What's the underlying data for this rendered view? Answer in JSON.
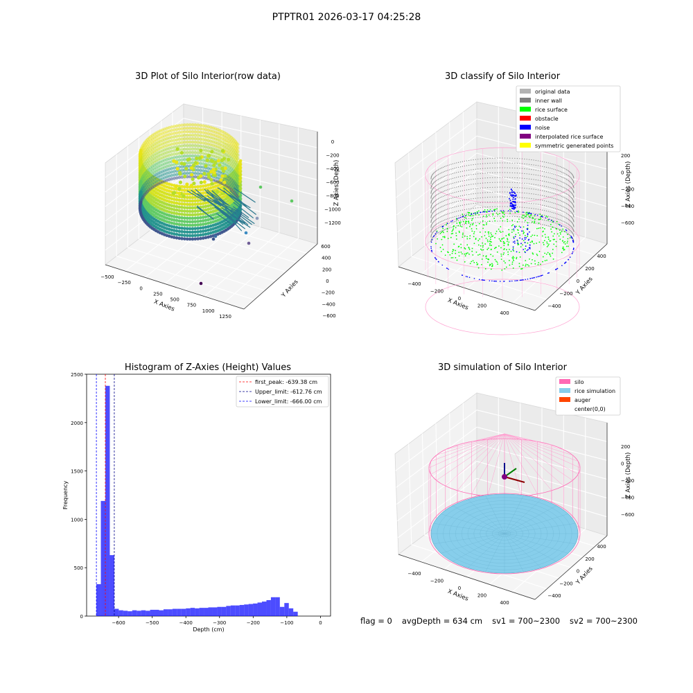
{
  "suptitle": "PTPTR01 2026-03-17 04:25:28",
  "panels": {
    "raw": {
      "title": "3D Plot of Silo Interior(row data)",
      "xlabel": "X Axies",
      "ylabel": "Y Axies",
      "zlabel": "Z Axies (Depth)",
      "xticks": [
        "−500",
        "−250",
        "0",
        "250",
        "500",
        "750",
        "1000",
        "1250"
      ],
      "yticks": [
        "−600",
        "−400",
        "−200",
        "0",
        "200",
        "400",
        "600"
      ],
      "zticks": [
        "−1200",
        "−1000",
        "−800",
        "−600",
        "−400",
        "−200",
        "0"
      ]
    },
    "classify": {
      "title": "3D classify of Silo Interior",
      "xlabel": "X Axies",
      "ylabel": "Y Axies",
      "zlabel": "Z Axies (Depth)",
      "xticks": [
        "−400",
        "−200",
        "0",
        "200",
        "400"
      ],
      "yticks": [
        "−400",
        "−200",
        "0",
        "200",
        "400"
      ],
      "zticks": [
        "−600",
        "−400",
        "−200",
        "0",
        "200"
      ],
      "legend": [
        {
          "label": "original data",
          "color": "#b3b3b3"
        },
        {
          "label": "inner wall",
          "color": "#808080"
        },
        {
          "label": "rice surface",
          "color": "#00ff00"
        },
        {
          "label": "obstacle",
          "color": "#ff0000"
        },
        {
          "label": "noise",
          "color": "#0000ff"
        },
        {
          "label": "interpolated rice surface",
          "color": "#800080"
        },
        {
          "label": "symmetric generated points",
          "color": "#ffff00"
        }
      ]
    },
    "simulation": {
      "title": "3D simulation of Silo Interior",
      "xlabel": "X Axies",
      "ylabel": "Y Axies",
      "zlabel": "Z Axies (Depth)",
      "xticks": [
        "−400",
        "−200",
        "0",
        "200",
        "400"
      ],
      "yticks": [
        "−400",
        "−200",
        "0",
        "200",
        "400"
      ],
      "zticks": [
        "−600",
        "−400",
        "−200",
        "0",
        "200"
      ],
      "legend": [
        {
          "label": "silo",
          "color": "#ff69b4"
        },
        {
          "label": "rice simulation",
          "color": "#87ceeb"
        },
        {
          "label": "auger",
          "color": "#ff4500"
        },
        {
          "label": "center(0,0)",
          "color": ""
        }
      ]
    }
  },
  "chart_data": {
    "type": "bar",
    "title": "Histogram of Z-Axies (Height) Values",
    "xlabel": "Depth (cm)",
    "ylabel": "Frequency",
    "xlim": [
      -695,
      30
    ],
    "ylim": [
      0,
      2500
    ],
    "xticks": [
      -600,
      -500,
      -400,
      -300,
      -200,
      -100,
      0
    ],
    "yticks": [
      0,
      500,
      1000,
      1500,
      2000,
      2500
    ],
    "bin_width": 13.3,
    "bin_start": -666,
    "values": [
      330,
      1190,
      2380,
      630,
      75,
      60,
      55,
      50,
      60,
      55,
      60,
      55,
      65,
      65,
      60,
      70,
      70,
      75,
      75,
      75,
      80,
      85,
      80,
      85,
      85,
      90,
      90,
      95,
      95,
      105,
      110,
      110,
      115,
      120,
      125,
      130,
      140,
      150,
      165,
      195,
      195,
      95,
      135,
      80,
      45
    ],
    "color": "#0000ff",
    "reference_lines": [
      {
        "name": "first_peak: -639.38 cm",
        "value": -639.38,
        "color": "#ff0000"
      },
      {
        "name": "Upper_limit: -612.76 cm",
        "value": -612.76,
        "color": "#00008b"
      },
      {
        "name": "Lower_limit: -666.00 cm",
        "value": -666.0,
        "color": "#0000ff"
      }
    ],
    "legend_position": "top-right"
  },
  "stats": {
    "flag": "flag = 0",
    "avg_depth": "avgDepth = 634 cm",
    "sv1": "sv1 = 700~2300",
    "sv2": "sv2 = 700~2300"
  }
}
